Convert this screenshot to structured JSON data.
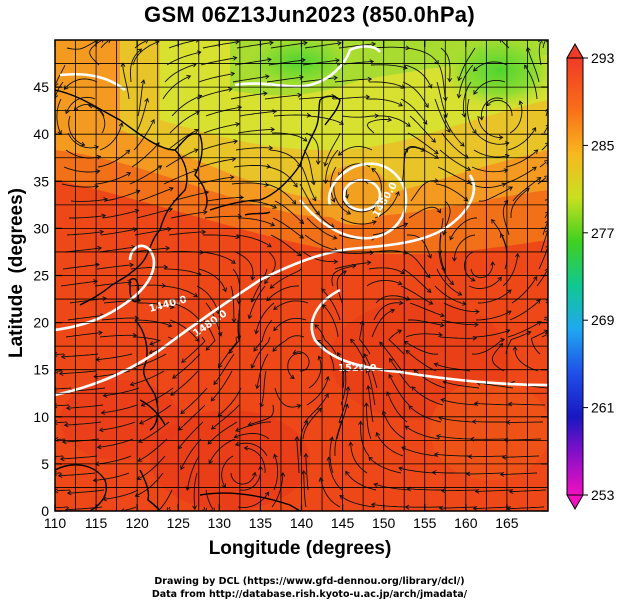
{
  "title": "GSM 06Z13Jun2023 (850.0hPa)",
  "axes": {
    "xlabel": "Longitude (degrees)",
    "ylabel": "Latitude  (degrees)",
    "xlim": [
      110,
      170
    ],
    "ylim": [
      0,
      50
    ],
    "x_ticks": [
      "110",
      "115",
      "120",
      "125",
      "130",
      "135",
      "140",
      "145",
      "150",
      "155",
      "160",
      "165"
    ],
    "y_ticks": [
      "0",
      "5",
      "10",
      "15",
      "20",
      "25",
      "30",
      "35",
      "40",
      "45"
    ]
  },
  "colorbar": {
    "min": 253,
    "max": 293,
    "labels": [
      "293",
      "285",
      "277",
      "269",
      "261",
      "253"
    ]
  },
  "contours": {
    "labels": [
      "1440.0",
      "1480.0",
      "1520.0",
      "1480.0"
    ]
  },
  "credits": {
    "line1": "Drawing by DCL (https://www.gfd-dennou.org/library/dcl/)",
    "line2": "Data from http://database.rish.kyoto-u.ac.jp/arch/jmadata/"
  },
  "colors": {
    "warm": "#f04a18",
    "hot": "#e8301a",
    "mild": "#f8a020",
    "cool": "#d8e030",
    "cold": "#80d830",
    "contour": "#ffffff"
  }
}
